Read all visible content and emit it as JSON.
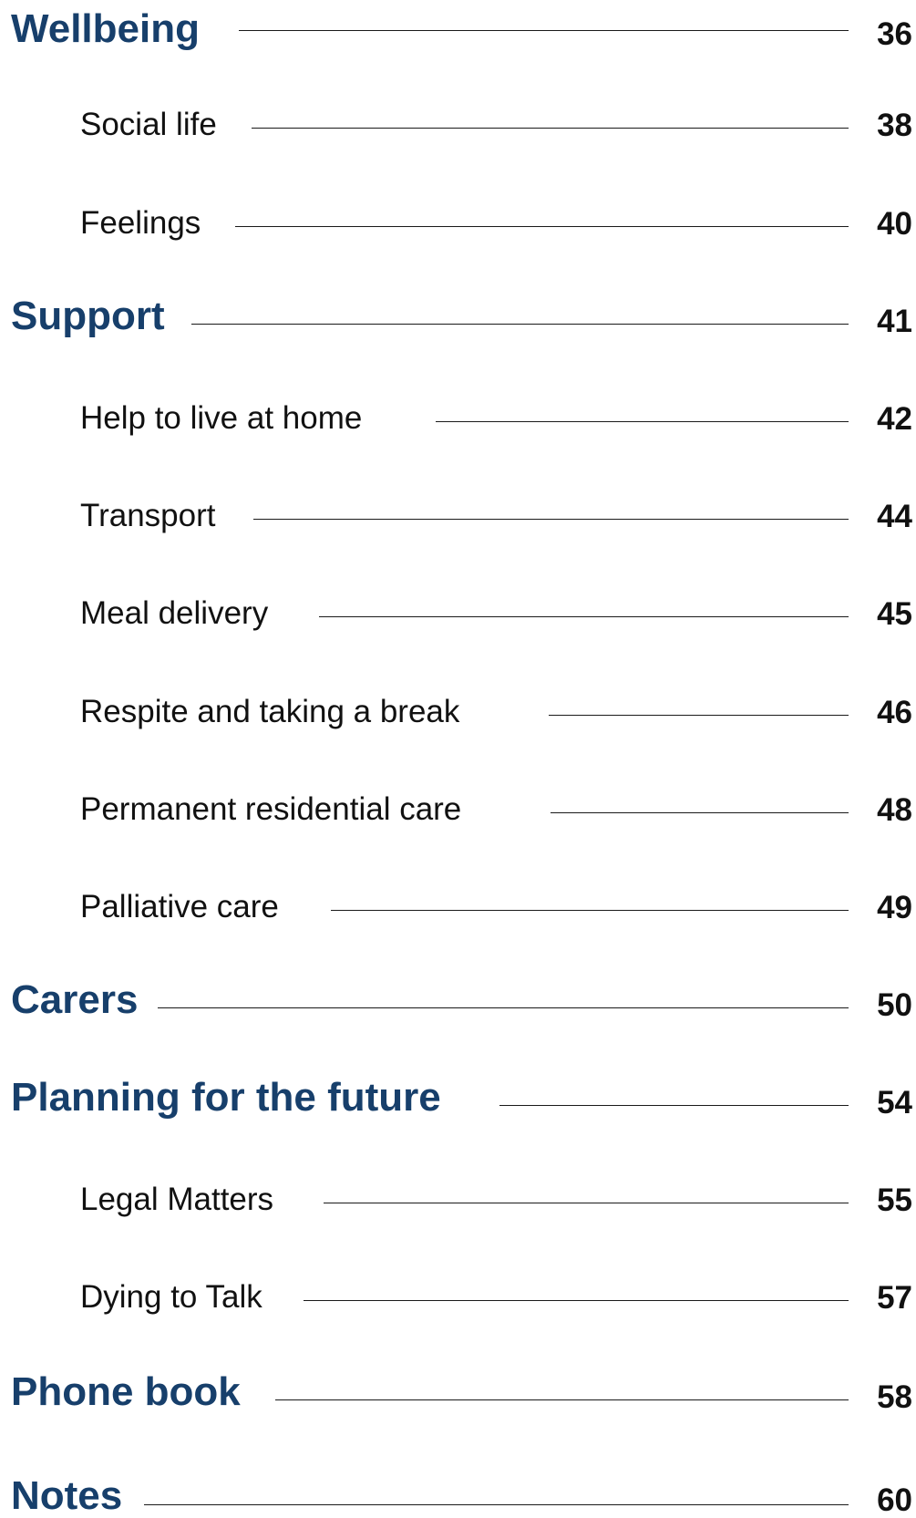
{
  "toc": {
    "entries": [
      {
        "label": "Wellbeing",
        "page": "36",
        "level": 1
      },
      {
        "label": "Social life",
        "page": "38",
        "level": 2
      },
      {
        "label": "Feelings",
        "page": "40",
        "level": 2
      },
      {
        "label": "Support",
        "page": "41",
        "level": 1
      },
      {
        "label": "Help to live at home",
        "page": "42",
        "level": 2
      },
      {
        "label": "Transport",
        "page": "44",
        "level": 2
      },
      {
        "label": "Meal delivery",
        "page": "45",
        "level": 2
      },
      {
        "label": "Respite and taking a break",
        "page": "46",
        "level": 2
      },
      {
        "label": "Permanent residential care",
        "page": "48",
        "level": 2
      },
      {
        "label": "Palliative care",
        "page": "49",
        "level": 2
      },
      {
        "label": "Carers",
        "page": "50",
        "level": 1
      },
      {
        "label": "Planning for the future",
        "page": "54",
        "level": 1
      },
      {
        "label": "Legal Matters",
        "page": "55",
        "level": 2
      },
      {
        "label": "Dying to Talk",
        "page": "57",
        "level": 2
      },
      {
        "label": "Phone book",
        "page": "58",
        "level": 1
      },
      {
        "label": "Notes",
        "page": "60",
        "level": 1
      }
    ]
  },
  "colors": {
    "heading": "#173f6b",
    "text": "#111111",
    "rule": "#1a1a1a",
    "background": "#ffffff"
  }
}
